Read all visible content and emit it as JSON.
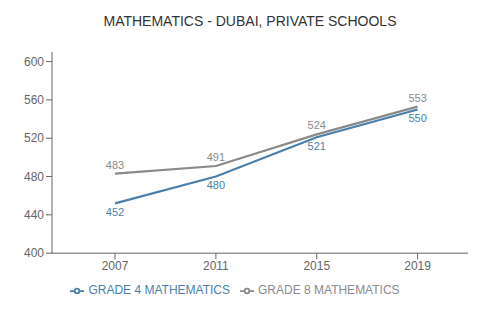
{
  "chart_data": {
    "type": "line",
    "title": "MATHEMATICS - DUBAI, PRIVATE SCHOOLS",
    "x": [
      2007,
      2011,
      2015,
      2019
    ],
    "series": [
      {
        "name": "GRADE 4 MATHEMATICS",
        "color": "#4a7fab",
        "values": [
          452,
          480,
          521,
          550
        ]
      },
      {
        "name": "GRADE 8 MATHEMATICS",
        "color": "#8a8a8a",
        "values": [
          483,
          491,
          524,
          553
        ]
      }
    ],
    "xlim": [
      2004.5,
      2021
    ],
    "xticks": [
      2007,
      2011,
      2015,
      2019
    ],
    "ylim": [
      400,
      610
    ],
    "yticks": [
      400,
      440,
      480,
      520,
      560,
      600
    ],
    "grid": false,
    "legend": "bottom",
    "data_labels": true
  }
}
